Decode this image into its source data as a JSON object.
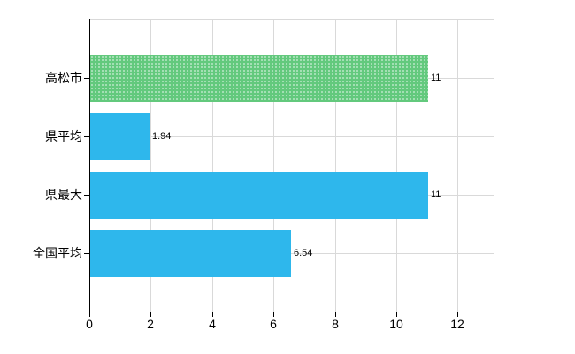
{
  "chart_data": {
    "type": "bar",
    "orientation": "horizontal",
    "title": "",
    "xlabel": "",
    "ylabel": "",
    "categories": [
      "高松市",
      "県平均",
      "県最大",
      "全国平均"
    ],
    "values": [
      11,
      1.94,
      11,
      6.54
    ],
    "value_labels": [
      "11",
      "1.94",
      "11",
      "6.54"
    ],
    "x_tick_labels": [
      "0",
      "2",
      "4",
      "6",
      "8",
      "10",
      "12"
    ],
    "x_tick_values": [
      0,
      2,
      4,
      6,
      8,
      10,
      12
    ],
    "xlim": [
      0,
      13.2
    ],
    "grid": true,
    "legend": false,
    "highlighted_category": "高松市",
    "bar_colors": [
      "#63c97d",
      "#2eb7ec",
      "#2eb7ec",
      "#2eb7ec"
    ],
    "colors": {
      "highlight_bar": "#63c97d",
      "default_bar": "#2eb7ec",
      "gridline": "#d9d9d9",
      "axis": "#000000",
      "text": "#000000",
      "background": "#ffffff"
    }
  }
}
